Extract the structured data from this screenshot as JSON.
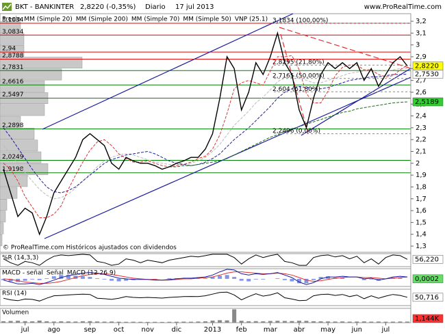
{
  "header": {
    "symbol": "BKT - BANKINTER",
    "price": "2,8220 (-0,35%)",
    "period": "Diario",
    "date": "17 jul 2013",
    "site": "www.ProRealTime.com"
  },
  "chart_data": [
    {
      "type": "line",
      "note": "© ProRealTime.com  Históricos ajustados con dividendos",
      "categories": [
        null,
        null,
        null,
        "jul",
        null,
        null,
        null,
        "ago",
        null,
        null,
        null,
        null,
        "sep",
        null,
        null,
        null,
        "oct",
        null,
        null,
        null,
        "nov",
        null,
        null,
        null,
        "dic",
        null,
        null,
        null,
        null,
        "2013",
        null,
        null,
        null,
        "feb",
        null,
        null,
        null,
        "mar",
        null,
        null,
        null,
        "abr",
        null,
        null,
        null,
        "may",
        null,
        null,
        null,
        "jun",
        null,
        null,
        null,
        "jul",
        null,
        null,
        null
      ],
      "ylim": [
        1.248,
        3.264
      ],
      "yticks": [
        {
          "value": 1.3,
          "label": "1,3"
        },
        {
          "value": 1.4,
          "label": "1,4"
        },
        {
          "value": 1.5,
          "label": "1,5"
        },
        {
          "value": 1.6,
          "label": "1,6"
        },
        {
          "value": 1.7,
          "label": "1,7"
        },
        {
          "value": 1.8,
          "label": "1,8"
        },
        {
          "value": 1.9,
          "label": "1,9"
        },
        2,
        {
          "value": 2.1,
          "label": "2,1"
        },
        {
          "value": 2.2,
          "label": "2,2"
        },
        {
          "value": 2.3,
          "label": "2,3"
        },
        {
          "value": 2.4,
          "label": "2,4"
        },
        {
          "value": 2.5,
          "label": "2,5"
        },
        {
          "value": 2.6,
          "label": "2,6"
        },
        {
          "value": 2.7,
          "label": "2,7"
        },
        {
          "value": 2.8,
          "label": "2,8"
        },
        {
          "value": 2.9,
          "label": "2,9"
        },
        3,
        {
          "value": 3.1,
          "label": "3,1"
        },
        {
          "value": 3.2,
          "label": "3,2"
        }
      ],
      "series": [
        {
          "name": "Precio",
          "color": "#000000",
          "width": 1.4,
          "values": [
            1.95,
            1.75,
            1.55,
            1.62,
            1.58,
            1.4,
            1.55,
            1.75,
            1.85,
            1.95,
            2.05,
            2.2,
            2.25,
            2.2,
            2.15,
            2.0,
            1.95,
            2.05,
            2.02,
            2.0,
            2.0,
            1.98,
            1.95,
            1.97,
            2.0,
            2.02,
            2.05,
            2.05,
            2.12,
            2.25,
            2.55,
            2.9,
            2.8,
            2.45,
            2.6,
            2.85,
            2.75,
            2.9,
            3.1,
            2.85,
            2.75,
            2.45,
            2.3,
            2.55,
            2.75,
            2.85,
            2.8,
            2.85,
            2.8,
            2.85,
            2.7,
            2.8,
            2.65,
            2.75,
            2.85,
            2.9,
            2.822
          ]
        },
        {
          "name": "MM (Simple 20)",
          "color": "#e03030",
          "dashed": true,
          "values": [
            2.0,
            1.95,
            1.85,
            1.72,
            1.63,
            1.54,
            1.54,
            1.57,
            1.64,
            1.78,
            1.9,
            2.01,
            2.11,
            2.18,
            2.2,
            2.15,
            2.08,
            2.04,
            2.01,
            2.01,
            2.02,
            2.0,
            1.98,
            1.97,
            1.98,
            1.99,
            2.01,
            2.04,
            2.06,
            2.12,
            2.24,
            2.42,
            2.63,
            2.68,
            2.7,
            2.68,
            2.66,
            2.78,
            2.9,
            2.9,
            2.91,
            2.79,
            2.59,
            2.51,
            2.51,
            2.61,
            2.74,
            2.81,
            2.83,
            2.83,
            2.79,
            2.79,
            2.75,
            2.73,
            2.74,
            2.79,
            2.83
          ]
        },
        {
          "name": "MM (Simple 200)",
          "color": "#1a6b1a",
          "dashed": true,
          "values": [
            null,
            null,
            null,
            null,
            null,
            null,
            null,
            null,
            null,
            null,
            null,
            null,
            null,
            null,
            null,
            null,
            null,
            null,
            null,
            null,
            null,
            null,
            null,
            1.97,
            1.97,
            1.98,
            1.98,
            1.99,
            2.0,
            2.01,
            2.02,
            2.04,
            2.07,
            2.1,
            2.13,
            2.16,
            2.19,
            2.22,
            2.24,
            2.27,
            2.29,
            2.31,
            2.33,
            2.35,
            2.37,
            2.39,
            2.41,
            2.43,
            2.44,
            2.46,
            2.47,
            2.48,
            2.49,
            2.5,
            2.51,
            2.515,
            2.5189
          ]
        },
        {
          "name": "MM (Simple 70)",
          "color": "#1a1aa0",
          "dashed": true,
          "values": [
            2.3,
            2.22,
            2.13,
            2.04,
            1.95,
            1.87,
            1.8,
            1.76,
            1.75,
            1.77,
            1.8,
            1.85,
            1.9,
            1.95,
            2.0,
            2.03,
            2.05,
            2.07,
            2.08,
            2.09,
            2.1,
            2.08,
            2.05,
            2.02,
            2.0,
            1.99,
            1.98,
            1.99,
            2.01,
            2.04,
            2.08,
            2.14,
            2.2,
            2.25,
            2.3,
            2.36,
            2.42,
            2.48,
            2.55,
            2.6,
            2.63,
            2.65,
            2.64,
            2.63,
            2.63,
            2.64,
            2.66,
            2.68,
            2.7,
            2.71,
            2.72,
            2.73,
            2.73,
            2.74,
            2.75,
            2.75,
            2.753
          ]
        },
        {
          "name": "MM (Simple 50)",
          "color": "#bbbbbb",
          "dashed": true,
          "values": [
            2.15,
            2.08,
            2.0,
            1.92,
            1.85,
            1.78,
            1.73,
            1.7,
            1.71,
            1.74,
            1.79,
            1.85,
            1.91,
            1.97,
            2.02,
            2.05,
            2.07,
            2.08,
            2.07,
            2.05,
            2.03,
            2.01,
            2.0,
            1.99,
            1.99,
            1.99,
            2.0,
            2.02,
            2.05,
            2.1,
            2.16,
            2.24,
            2.32,
            2.38,
            2.44,
            2.51,
            2.56,
            2.62,
            2.69,
            2.72,
            2.74,
            2.73,
            2.7,
            2.68,
            2.68,
            2.7,
            2.72,
            2.74,
            2.76,
            2.77,
            2.78,
            2.78,
            2.78,
            2.78,
            2.79,
            2.8,
            2.8
          ]
        }
      ],
      "volume_profile": {
        "name": "VNP (25.1)",
        "color": "#c8c8c8",
        "bins": [
          1.3,
          1.4,
          1.5,
          1.6,
          1.7,
          1.8,
          1.9,
          2.0,
          2.1,
          2.2,
          2.3,
          2.4,
          2.5,
          2.6,
          2.7,
          2.8,
          2.9,
          3.0,
          3.1,
          3.2
        ],
        "values": [
          3,
          5,
          8,
          10,
          25,
          40,
          70,
          60,
          55,
          50,
          30,
          65,
          70,
          65,
          90,
          120,
          35,
          35,
          30
        ]
      },
      "levels": [
        {
          "value": 3.1834,
          "label": "3,1834"
        },
        {
          "value": 3.0834,
          "label": "3,0834"
        },
        {
          "value": 2.94,
          "label": "2,94"
        },
        {
          "value": 2.8788,
          "label": "2,8788"
        },
        {
          "value": 2.7831,
          "label": "2,7831"
        },
        {
          "value": 2.6616,
          "label": "2,6616"
        },
        {
          "value": 2.5497,
          "label": "2,5497"
        },
        {
          "value": 2.2898,
          "label": "2,2898"
        },
        {
          "value": 2.0249,
          "label": "2,0249"
        },
        {
          "value": 1.9198,
          "label": "1,9198"
        }
      ],
      "fibonacci": [
        {
          "value": 3.1834,
          "label": "3,1834 (100,00%)"
        },
        {
          "value": 2.8295,
          "label": "2,8295 (21,80%)"
        },
        {
          "value": 2.7165,
          "label": "2,7165 (50,00%)"
        },
        {
          "value": 2.604,
          "label": "2,604 (61,80%)"
        },
        {
          "value": 2.2496,
          "label": "2,2496 (0,00%)"
        }
      ],
      "right_labels": [
        {
          "value": 2.822,
          "label": "2,8220",
          "color": "#ffff00"
        },
        {
          "value": 2.753,
          "label": "2,7530",
          "color": "#ffffff"
        },
        {
          "value": 2.5189,
          "label": "2,5189",
          "color": "#33cc33"
        }
      ]
    },
    {
      "type": "line",
      "title": "%R (14,3,3)",
      "ylim": [
        0,
        100
      ],
      "series": [
        {
          "color": "#000000",
          "values": [
            60,
            30,
            10,
            40,
            30,
            10,
            50,
            80,
            90,
            85,
            90,
            95,
            90,
            40,
            30,
            10,
            20,
            60,
            50,
            30,
            50,
            40,
            30,
            50,
            60,
            70,
            80,
            75,
            85,
            95,
            95,
            95,
            70,
            20,
            60,
            90,
            70,
            85,
            95,
            40,
            30,
            10,
            10,
            70,
            85,
            90,
            75,
            85,
            60,
            80,
            30,
            60,
            20,
            70,
            90,
            85,
            56.22
          ]
        }
      ],
      "current": {
        "value": 56.22,
        "label": "56,220",
        "color": "#ffffff"
      }
    },
    {
      "type": "line",
      "ylim": [
        -0.12,
        0.16
      ],
      "series": [
        {
          "name": "MACD - señal",
          "color": "#3050d0",
          "kind": "bar",
          "values": [
            -0.02,
            -0.04,
            -0.05,
            -0.03,
            -0.01,
            -0.02,
            0.01,
            0.04,
            0.06,
            0.06,
            0.05,
            0.04,
            0.03,
            0.01,
            -0.01,
            -0.03,
            -0.04,
            -0.03,
            -0.02,
            -0.01,
            0.0,
            -0.01,
            0.0,
            0.01,
            0.01,
            0.01,
            0.01,
            0.01,
            0.01,
            0.03,
            0.05,
            0.06,
            0.03,
            -0.03,
            -0.04,
            -0.01,
            -0.01,
            0.0,
            0.01,
            -0.02,
            -0.04,
            -0.07,
            -0.07,
            -0.02,
            0.03,
            0.04,
            0.02,
            0.02,
            0.0,
            0.0,
            -0.02,
            -0.01,
            -0.03,
            0.0,
            0.02,
            0.02,
            0.0002
          ]
        },
        {
          "name": "Señal",
          "color": "#e03030",
          "values": [
            0.0,
            -0.01,
            -0.03,
            -0.05,
            -0.06,
            -0.07,
            -0.07,
            -0.06,
            -0.04,
            -0.01,
            0.02,
            0.05,
            0.07,
            0.08,
            0.08,
            0.07,
            0.05,
            0.03,
            0.01,
            0.0,
            -0.01,
            -0.01,
            -0.02,
            -0.02,
            -0.01,
            0.0,
            0.0,
            0.01,
            0.02,
            0.03,
            0.06,
            0.09,
            0.11,
            0.11,
            0.1,
            0.09,
            0.08,
            0.08,
            0.09,
            0.08,
            0.06,
            0.02,
            -0.02,
            -0.04,
            -0.03,
            -0.01,
            0.01,
            0.02,
            0.03,
            0.03,
            0.02,
            0.02,
            0.01,
            0.0,
            0.01,
            0.02,
            0.03
          ]
        },
        {
          "name": "MACD (12 26 9)",
          "color": "#1a1aa0",
          "values": [
            -0.02,
            -0.05,
            -0.08,
            -0.08,
            -0.07,
            -0.09,
            -0.06,
            -0.02,
            0.02,
            0.05,
            0.07,
            0.09,
            0.1,
            0.09,
            0.07,
            0.04,
            0.01,
            0.0,
            -0.01,
            -0.01,
            -0.01,
            -0.02,
            -0.02,
            -0.01,
            0.0,
            0.01,
            0.01,
            0.02,
            0.03,
            0.06,
            0.11,
            0.15,
            0.14,
            0.08,
            0.06,
            0.08,
            0.07,
            0.08,
            0.1,
            0.06,
            0.02,
            -0.05,
            -0.09,
            -0.06,
            0.0,
            0.03,
            0.03,
            0.04,
            0.03,
            0.03,
            0.0,
            0.01,
            -0.02,
            0.0,
            0.03,
            0.04,
            0.03
          ]
        }
      ],
      "current": {
        "value": 0.0002,
        "label": "0,0002",
        "color": "#66dd66"
      }
    },
    {
      "type": "line",
      "title": "RSI (14)",
      "ylim": [
        0,
        100
      ],
      "series": [
        {
          "color": "#000000",
          "values": [
            45,
            35,
            30,
            40,
            38,
            28,
            45,
            60,
            62,
            65,
            68,
            70,
            68,
            45,
            42,
            38,
            45,
            55,
            50,
            48,
            50,
            48,
            46,
            50,
            52,
            55,
            56,
            55,
            60,
            70,
            80,
            82,
            65,
            35,
            55,
            72,
            58,
            65,
            78,
            48,
            40,
            30,
            32,
            60,
            68,
            70,
            62,
            68,
            55,
            64,
            42,
            60,
            45,
            58,
            68,
            62,
            50.716
          ]
        }
      ],
      "current": {
        "value": 50.716,
        "label": "50,716",
        "color": "#ffffff"
      }
    },
    {
      "type": "bar",
      "title": "Volumen",
      "ylim": [
        0,
        15000
      ],
      "color": "#888888",
      "values": [
        1500,
        1800,
        2000,
        1600,
        1400,
        2200,
        1500,
        1200,
        1400,
        1300,
        1200,
        1500,
        1600,
        1300,
        1100,
        1200,
        1000,
        900,
        1000,
        900,
        800,
        900,
        800,
        900,
        1000,
        1100,
        1000,
        1200,
        1400,
        2200,
        2600,
        2400,
        14000,
        2000,
        1500,
        1600,
        1400,
        1800,
        2000,
        1800,
        1700,
        2000,
        1900,
        1500,
        1400,
        1300,
        1200,
        1300,
        1100,
        1200,
        1300,
        1100,
        1200,
        1000,
        1100,
        1200,
        1144
      ],
      "current": {
        "value": 1144,
        "label": "1,144K",
        "color": "#ff3030"
      }
    }
  ]
}
